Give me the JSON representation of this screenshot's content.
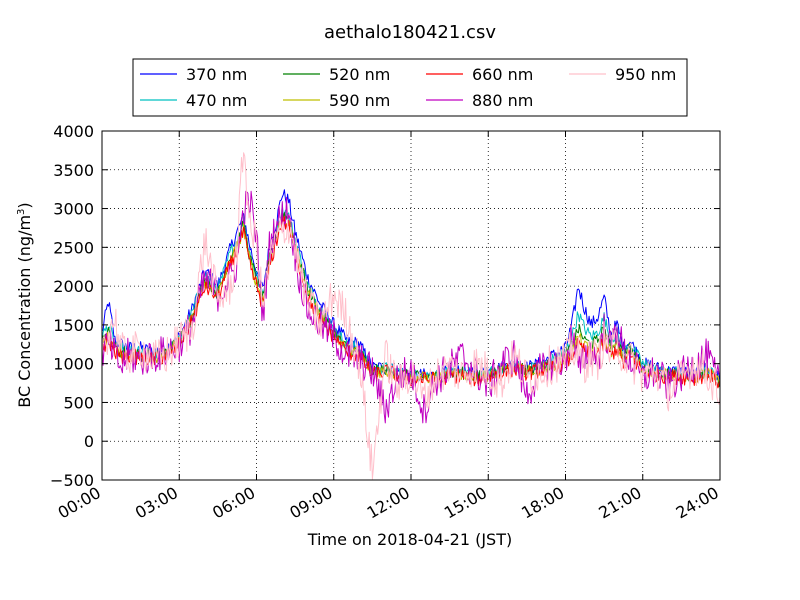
{
  "chart_data": {
    "type": "line",
    "title": "aethalo180421.csv",
    "xlabel": "Time on 2018-04-21 (JST)",
    "ylabel_main": "BC Concentration (ng/m",
    "ylabel_sup": "3",
    "ylabel_tail": ")",
    "xlim_hours": [
      0,
      24
    ],
    "ylim": [
      -500,
      4000
    ],
    "x_ticks": [
      {
        "hour": 0,
        "label": "00:00"
      },
      {
        "hour": 3,
        "label": "03:00"
      },
      {
        "hour": 6,
        "label": "06:00"
      },
      {
        "hour": 9,
        "label": "09:00"
      },
      {
        "hour": 12,
        "label": "12:00"
      },
      {
        "hour": 15,
        "label": "15:00"
      },
      {
        "hour": 18,
        "label": "18:00"
      },
      {
        "hour": 21,
        "label": "21:00"
      },
      {
        "hour": 24,
        "label": "24:00"
      }
    ],
    "y_ticks": [
      {
        "value": -500,
        "label": "−500"
      },
      {
        "value": 0,
        "label": "0"
      },
      {
        "value": 500,
        "label": "500"
      },
      {
        "value": 1000,
        "label": "1000"
      },
      {
        "value": 1500,
        "label": "1500"
      },
      {
        "value": 2000,
        "label": "2000"
      },
      {
        "value": 2500,
        "label": "2500"
      },
      {
        "value": 3000,
        "label": "3000"
      },
      {
        "value": 3500,
        "label": "3500"
      },
      {
        "value": 4000,
        "label": "4000"
      }
    ],
    "grid": true,
    "legend_position": "top-center",
    "base_x_hours": [
      0,
      0.25,
      0.5,
      0.75,
      1,
      1.5,
      2,
      2.5,
      3,
      3.5,
      4,
      4.5,
      5,
      5.25,
      5.5,
      5.75,
      6,
      6.25,
      6.5,
      6.75,
      7,
      7.25,
      7.5,
      7.75,
      8,
      8.5,
      9,
      9.5,
      10,
      10.5,
      11,
      11.5,
      12,
      12.5,
      13,
      13.5,
      14,
      14.5,
      15,
      15.5,
      16,
      16.5,
      17,
      17.5,
      18,
      18.25,
      18.5,
      18.75,
      19,
      19.25,
      19.5,
      19.75,
      20,
      20.25,
      20.5,
      21,
      21.5,
      22,
      22.5,
      23,
      23.5,
      24
    ],
    "series": [
      {
        "name": "370 nm",
        "color": "#0000ff",
        "values": [
          1400,
          1800,
          1300,
          1250,
          1200,
          1200,
          1150,
          1200,
          1350,
          1700,
          2200,
          2000,
          2500,
          2700,
          2900,
          2500,
          2200,
          1950,
          2500,
          2800,
          3200,
          3100,
          2700,
          2400,
          2100,
          1750,
          1500,
          1300,
          1250,
          950,
          950,
          900,
          850,
          850,
          850,
          900,
          900,
          850,
          900,
          950,
          1000,
          950,
          1000,
          1100,
          1200,
          1500,
          2000,
          1700,
          1500,
          1600,
          1850,
          1400,
          1500,
          1200,
          1300,
          1000,
          950,
          900,
          900,
          850,
          950,
          800
        ]
      },
      {
        "name": "470 nm",
        "color": "#00c0c0",
        "values": [
          1350,
          1500,
          1250,
          1200,
          1150,
          1150,
          1100,
          1150,
          1300,
          1650,
          2150,
          1950,
          2450,
          2600,
          2850,
          2400,
          2150,
          1900,
          2400,
          2700,
          3000,
          2900,
          2600,
          2300,
          2000,
          1700,
          1450,
          1250,
          1200,
          900,
          950,
          900,
          850,
          850,
          850,
          880,
          900,
          850,
          880,
          930,
          980,
          930,
          970,
          1050,
          1150,
          1350,
          1650,
          1450,
          1350,
          1400,
          1600,
          1300,
          1400,
          1150,
          1250,
          1000,
          930,
          880,
          880,
          830,
          920,
          780
        ]
      },
      {
        "name": "520 nm",
        "color": "#008000",
        "values": [
          1300,
          1400,
          1200,
          1150,
          1150,
          1100,
          1100,
          1150,
          1300,
          1600,
          2100,
          1900,
          2400,
          2550,
          2800,
          2350,
          2100,
          1850,
          2350,
          2650,
          2950,
          2850,
          2550,
          2250,
          1950,
          1650,
          1400,
          1200,
          1150,
          900,
          930,
          880,
          830,
          830,
          830,
          860,
          880,
          830,
          860,
          910,
          960,
          910,
          950,
          1000,
          1100,
          1250,
          1450,
          1300,
          1250,
          1300,
          1450,
          1200,
          1300,
          1100,
          1200,
          950,
          900,
          860,
          860,
          820,
          900,
          770
        ]
      },
      {
        "name": "590 nm",
        "color": "#bfbf00",
        "values": [
          1250,
          1350,
          1200,
          1150,
          1100,
          1100,
          1080,
          1120,
          1280,
          1580,
          2050,
          1880,
          2350,
          2500,
          2750,
          2300,
          2050,
          1800,
          2300,
          2600,
          2900,
          2800,
          2500,
          2200,
          1900,
          1600,
          1380,
          1180,
          1130,
          880,
          910,
          860,
          820,
          820,
          820,
          850,
          860,
          820,
          850,
          900,
          950,
          900,
          930,
          980,
          1050,
          1150,
          1350,
          1220,
          1180,
          1220,
          1350,
          1150,
          1250,
          1050,
          1150,
          930,
          880,
          850,
          850,
          810,
          890,
          760
        ]
      },
      {
        "name": "660 nm",
        "color": "#ff0000",
        "values": [
          1200,
          1300,
          1150,
          1100,
          1100,
          1080,
          1050,
          1100,
          1250,
          1550,
          2000,
          1850,
          2300,
          2450,
          2700,
          2250,
          2000,
          1750,
          2250,
          2550,
          2850,
          2750,
          2450,
          2150,
          1850,
          1550,
          1350,
          1150,
          1100,
          850,
          900,
          850,
          800,
          800,
          800,
          840,
          850,
          800,
          830,
          880,
          930,
          880,
          910,
          960,
          1000,
          1100,
          1250,
          1150,
          1100,
          1150,
          1250,
          1100,
          1200,
          1000,
          1100,
          900,
          860,
          830,
          830,
          800,
          870,
          750
        ]
      },
      {
        "name": "880 nm",
        "color": "#c000c0",
        "values": [
          1150,
          1250,
          1100,
          950,
          1100,
          1050,
          1100,
          1150,
          1250,
          1500,
          2100,
          1900,
          2100,
          2300,
          3000,
          3100,
          2600,
          1600,
          2500,
          2800,
          2900,
          3000,
          2400,
          2000,
          1700,
          1500,
          1350,
          1100,
          1050,
          900,
          400,
          850,
          900,
          400,
          800,
          950,
          1100,
          900,
          700,
          1000,
          1100,
          600,
          900,
          1000,
          1050,
          1400,
          900,
          1100,
          1200,
          1000,
          1450,
          1200,
          1500,
          1150,
          1050,
          800,
          900,
          700,
          850,
          1000,
          1100,
          700
        ]
      },
      {
        "name": "950 nm",
        "color": "#ffc0cb",
        "values": [
          1250,
          1400,
          1600,
          1150,
          1100,
          1200,
          1050,
          1100,
          1300,
          1450,
          2600,
          1800,
          2000,
          2500,
          3850,
          2700,
          2600,
          1700,
          2300,
          2600,
          2700,
          2800,
          2500,
          2100,
          1800,
          1500,
          1900,
          1600,
          1000,
          -400,
          1100,
          700,
          900,
          550,
          850,
          950,
          850,
          1000,
          900,
          750,
          1100,
          800,
          900,
          1000,
          1050,
          1200,
          1100,
          1000,
          1100,
          1050,
          1300,
          1150,
          1250,
          1100,
          1050,
          850,
          900,
          650,
          800,
          1000,
          900,
          600
        ]
      }
    ]
  }
}
